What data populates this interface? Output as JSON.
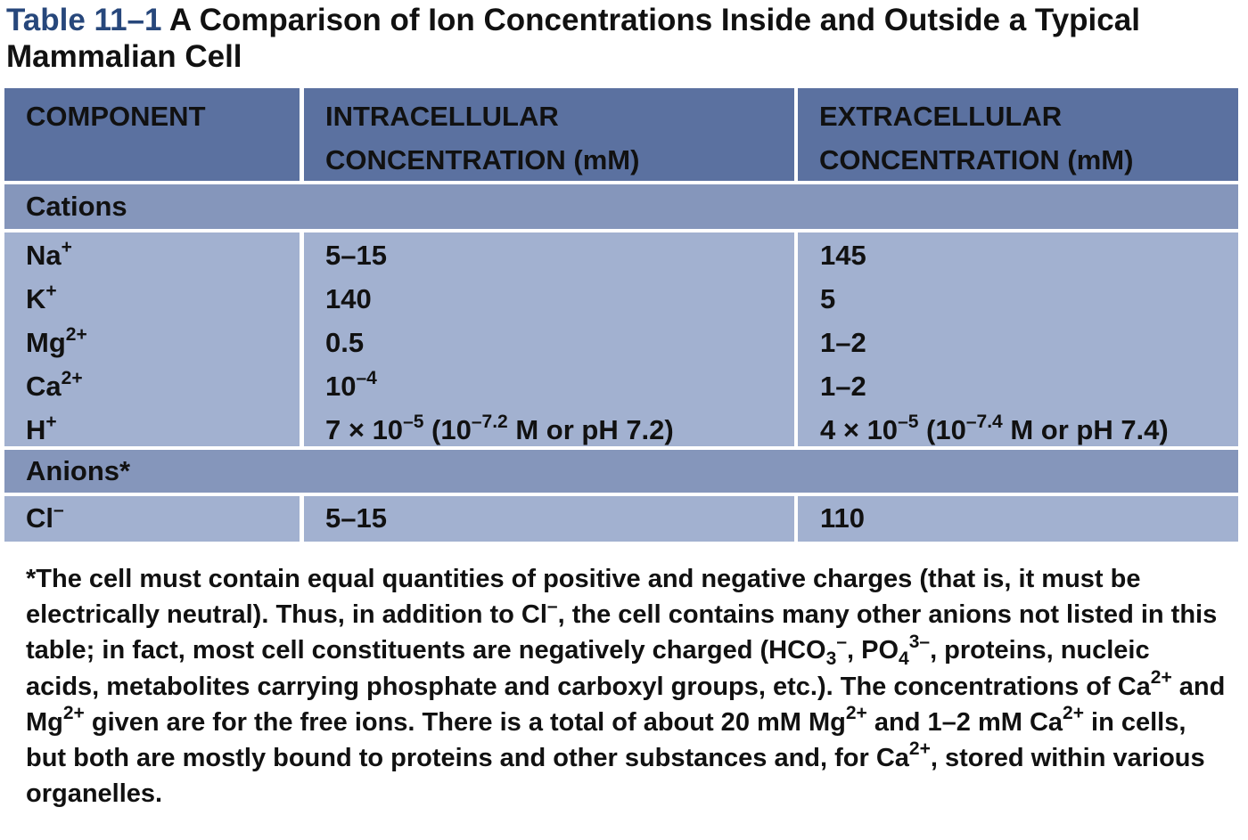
{
  "title": {
    "label": "Table 11–1",
    "text": "A Comparison of Ion Concentrations Inside and Outside a Typical Mammalian Cell"
  },
  "headers": {
    "component": "COMPONENT",
    "intra_line1": "INTRACELLULAR",
    "intra_line2": "CONCENTRATION (mM)",
    "extra_line1": "EXTRACELLULAR",
    "extra_line2": "CONCENTRATION (mM)"
  },
  "sections": {
    "cations": "Cations",
    "anions": "Anions*"
  },
  "cations": [
    {
      "base": "Na",
      "charge": "+",
      "intra": "5–15",
      "extra": "145"
    },
    {
      "base": "K",
      "charge": "+",
      "intra": "140",
      "extra": "5"
    },
    {
      "base": "Mg",
      "charge": "2+",
      "intra": "0.5",
      "extra": "1–2"
    },
    {
      "base": "Ca",
      "charge": "2+",
      "intra_base": "10",
      "intra_exp": "–4",
      "extra": "1–2"
    },
    {
      "base": "H",
      "charge": "+",
      "intra_pre": "7 × 10",
      "intra_exp": "–5",
      "intra_mid": " (10",
      "intra_exp2": "–7.2",
      "intra_post": " M or pH 7.2)",
      "extra_pre": "4 × 10",
      "extra_exp": "–5",
      "extra_mid": " (10",
      "extra_exp2": "–7.4",
      "extra_post": " M or pH 7.4)"
    }
  ],
  "anions": [
    {
      "base": "Cl",
      "charge": "–",
      "intra": "5–15",
      "extra": "110"
    }
  ],
  "footnote": {
    "t1": "*The cell must contain equal quantities of positive and negative charges (that is, it must be electrically neutral). Thus, in addition to Cl",
    "s1": "–",
    "t2": ", the cell contains many other anions not listed in this table; in fact, most cell constituents are negatively charged (HCO",
    "sub1": "3",
    "s2": "–",
    "t3": ", PO",
    "sub2": "4",
    "s3": "3–",
    "t4": ", proteins, nucleic acids, metabolites carrying phosphate and carboxyl groups, etc.). The concentrations of Ca",
    "s4": "2+",
    "t5": " and Mg",
    "s5": "2+",
    "t6": " given are for the free ions. There is a total of about 20 mM Mg",
    "s6": "2+",
    "t7": " and 1–2 mM Ca",
    "s7": "2+",
    "t8": " in cells, but both are mostly bound to proteins and other substances and, for Ca",
    "s8": "2+",
    "t9": ", stored within various organelles."
  },
  "colors": {
    "title_label": "#27477b",
    "header_bg": "#5b71a0",
    "section_bg": "#8596bb",
    "body_bg": "#a2b1d0"
  }
}
